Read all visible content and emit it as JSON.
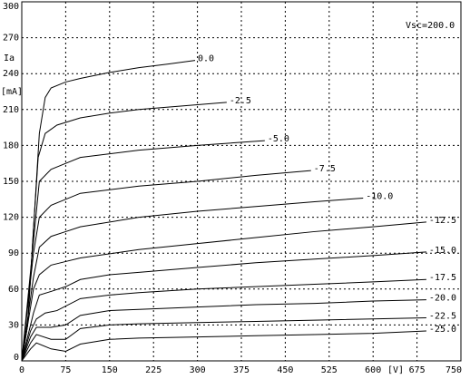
{
  "chart_data": {
    "type": "line",
    "annotation": "Vsc=200.0",
    "y_label": "Ia",
    "y_unit": "[mA]",
    "x_unit": "[V]",
    "xlim": [
      0,
      750
    ],
    "xticks": [
      0,
      75,
      150,
      225,
      300,
      375,
      450,
      525,
      600,
      675,
      750
    ],
    "ylim": [
      0,
      300
    ],
    "yticks": [
      0,
      30,
      60,
      90,
      120,
      150,
      180,
      210,
      240,
      270,
      300
    ],
    "grid": true,
    "color": "#000000",
    "series": [
      {
        "name": "0.0",
        "x": [
          0,
          10,
          20,
          30,
          40,
          50,
          75,
          100,
          150,
          200,
          250,
          296
        ],
        "values": [
          0,
          30,
          110,
          190,
          220,
          228,
          233,
          236,
          241,
          245,
          248,
          251
        ]
      },
      {
        "name": "-2.5",
        "x": [
          0,
          10,
          20,
          28,
          40,
          60,
          100,
          150,
          200,
          250,
          300,
          350
        ],
        "values": [
          0,
          30,
          110,
          170,
          190,
          197,
          203,
          207,
          210,
          212,
          214,
          216
        ]
      },
      {
        "name": "-5.0",
        "x": [
          0,
          20,
          30,
          50,
          75,
          100,
          200,
          300,
          415
        ],
        "values": [
          0,
          100,
          150,
          160,
          165,
          170,
          176,
          180,
          184
        ]
      },
      {
        "name": "-7.5",
        "x": [
          0,
          20,
          30,
          50,
          75,
          100,
          200,
          300,
          400,
          494
        ],
        "values": [
          0,
          90,
          120,
          130,
          135,
          140,
          146,
          150,
          155,
          159
        ]
      },
      {
        "name": "-10.0",
        "x": [
          0,
          20,
          30,
          50,
          75,
          100,
          200,
          300,
          400,
          500,
          583
        ],
        "values": [
          0,
          70,
          95,
          104,
          108,
          112,
          120,
          125,
          129,
          133,
          136
        ]
      },
      {
        "name": "-12.5",
        "x": [
          0,
          20,
          30,
          50,
          75,
          100,
          200,
          300,
          400,
          500,
          600,
          691
        ],
        "values": [
          0,
          60,
          72,
          80,
          83,
          86,
          93,
          98,
          103,
          108,
          112,
          116
        ]
      },
      {
        "name": "-15.0",
        "x": [
          0,
          20,
          30,
          50,
          75,
          100,
          150,
          200,
          300,
          400,
          500,
          600,
          691
        ],
        "values": [
          0,
          40,
          55,
          58,
          62,
          68,
          72,
          74,
          78,
          82,
          85,
          88,
          91
        ]
      },
      {
        "name": "-17.5",
        "x": [
          0,
          15,
          25,
          40,
          60,
          100,
          150,
          200,
          300,
          400,
          500,
          600,
          691
        ],
        "values": [
          0,
          25,
          35,
          40,
          42,
          52,
          55,
          57,
          60,
          62,
          64,
          66,
          68
        ]
      },
      {
        "name": "-20.0",
        "x": [
          0,
          15,
          25,
          50,
          75,
          100,
          150,
          200,
          300,
          400,
          500,
          600,
          691
        ],
        "values": [
          0,
          20,
          28,
          28,
          30,
          38,
          42,
          43,
          45,
          47,
          48,
          50,
          51
        ]
      },
      {
        "name": "-22.5",
        "x": [
          0,
          15,
          25,
          50,
          75,
          100,
          150,
          200,
          300,
          400,
          500,
          691
        ],
        "values": [
          0,
          15,
          22,
          18,
          18,
          27,
          30,
          31,
          32,
          33,
          34,
          36
        ]
      },
      {
        "name": "-25.0",
        "x": [
          0,
          15,
          25,
          50,
          75,
          100,
          150,
          200,
          300,
          400,
          500,
          600,
          691
        ],
        "values": [
          0,
          10,
          15,
          10,
          8,
          14,
          18,
          19,
          20,
          21,
          22,
          23,
          25
        ]
      }
    ]
  }
}
